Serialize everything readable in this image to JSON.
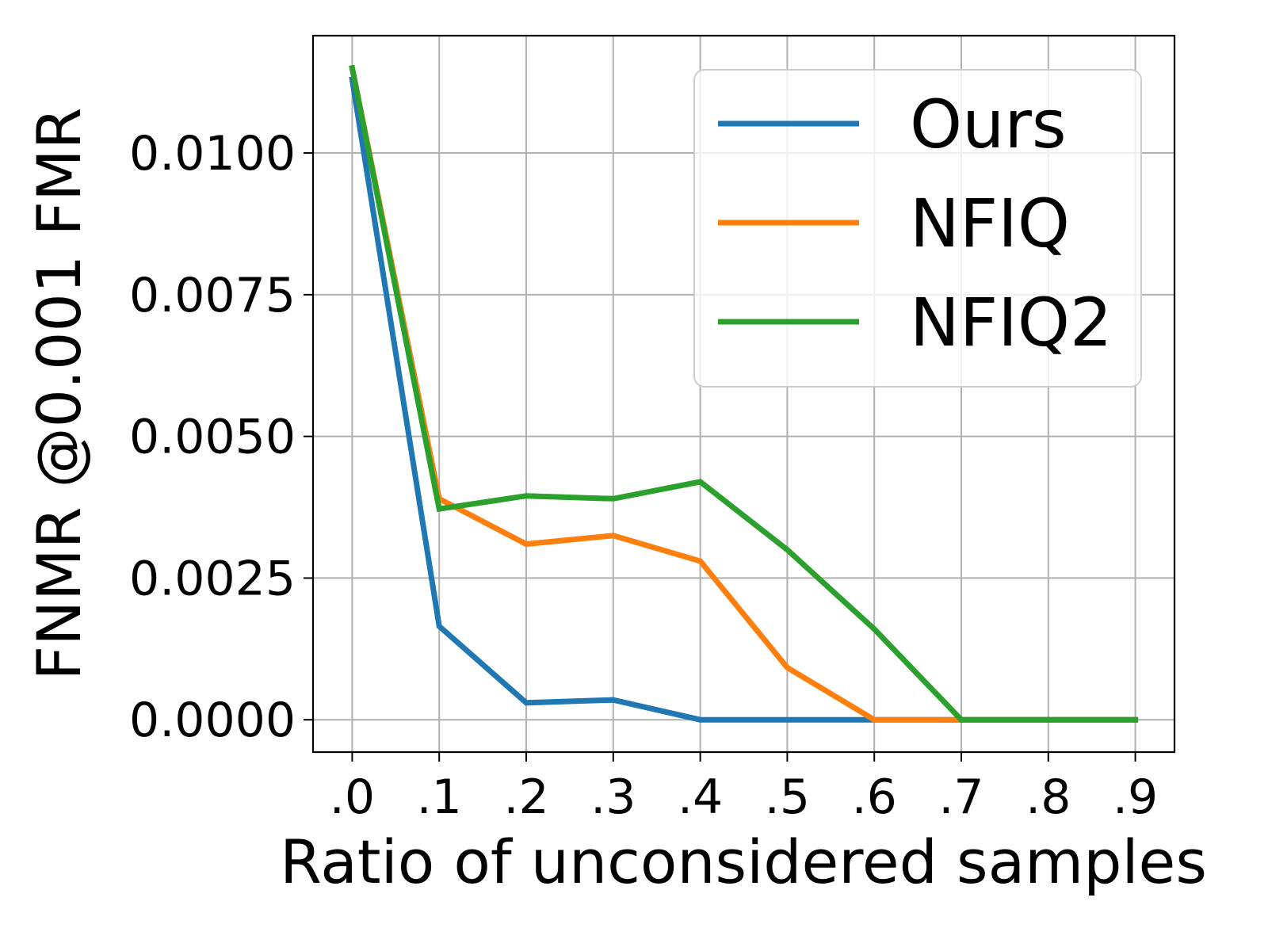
{
  "chart_data": {
    "type": "line",
    "title": "",
    "xlabel": "Ratio of unconsidered samples",
    "ylabel": "FNMR @0.001 FMR",
    "x": [
      0.0,
      0.1,
      0.2,
      0.3,
      0.4,
      0.5,
      0.6,
      0.7,
      0.8,
      0.9
    ],
    "x_tick_labels": [
      ".0",
      ".1",
      ".2",
      ".3",
      ".4",
      ".5",
      ".6",
      ".7",
      ".8",
      ".9"
    ],
    "y_ticks": [
      0.0,
      0.0025,
      0.005,
      0.0075,
      0.01
    ],
    "y_tick_labels": [
      "0.0000",
      "0.0025",
      "0.0050",
      "0.0075",
      "0.0100"
    ],
    "xlim": [
      -0.045,
      0.945
    ],
    "ylim": [
      -0.00057,
      0.01207
    ],
    "grid": true,
    "legend_position": "upper-right",
    "series": [
      {
        "name": "Ours",
        "color": "#1f77b4",
        "values": [
          0.0113,
          0.00165,
          0.0003,
          0.00035,
          0.0,
          0.0,
          0.0,
          0.0,
          0.0,
          0.0
        ]
      },
      {
        "name": "NFIQ",
        "color": "#ff7f0e",
        "values": [
          0.0115,
          0.0039,
          0.0031,
          0.00325,
          0.0028,
          0.00092,
          0.0,
          0.0,
          0.0,
          0.0
        ]
      },
      {
        "name": "NFIQ2",
        "color": "#2ca02c",
        "values": [
          0.0115,
          0.00372,
          0.00395,
          0.0039,
          0.0042,
          0.003,
          0.0016,
          0.0,
          0.0,
          0.0
        ]
      }
    ]
  }
}
